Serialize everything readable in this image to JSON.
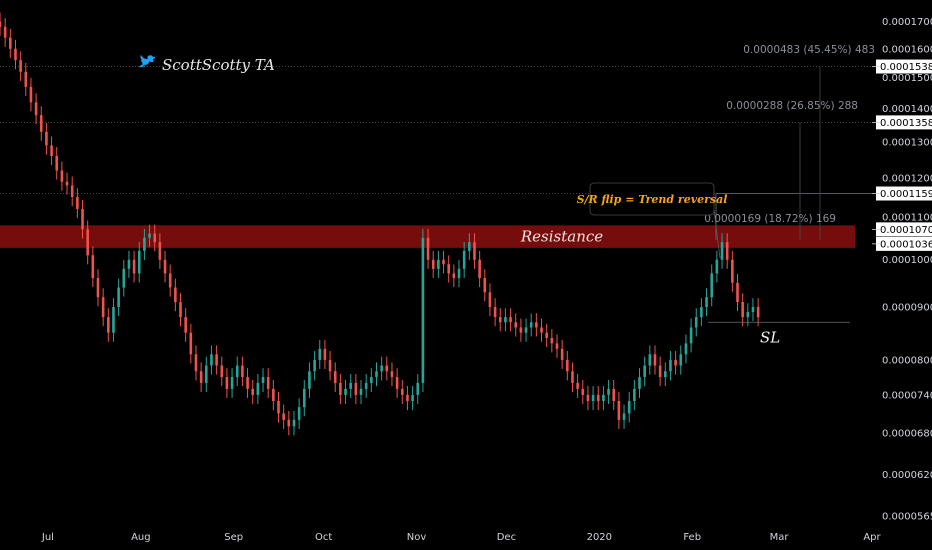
{
  "watermark": {
    "text": "ScottScotty TA",
    "icon": "twitter-bird-icon",
    "icon_color": "#1da1f2"
  },
  "annotations": {
    "resistance": "Resistance",
    "sl": "SL",
    "callout": "S/R flip = Trend reversal"
  },
  "measurements": [
    {
      "text": "0.0000483 (45.45%) 483",
      "price": 0.00016
    },
    {
      "text": "0.0000288 (26.85%) 288",
      "price": 0.0001412
    },
    {
      "text": "0.0000169 (18.72%) 169",
      "price": 0.0001097
    }
  ],
  "colors": {
    "background": "#000000",
    "up": "#26a69a",
    "down": "#ef5350",
    "resistance_zone": "#8b0f0f",
    "callout": "#f7a21b"
  },
  "chart_data": {
    "type": "candlestick",
    "y_axis": {
      "ticks": [
        "0.0001700",
        "0.0001600",
        "0.0001500",
        "0.0001400",
        "0.0001300",
        "0.0001200",
        "0.0001100",
        "0.0001000",
        "0.0000900",
        "0.0000800",
        "0.0000740",
        "0.0000680",
        "0.0000620",
        "0.0000565"
      ],
      "scale": "log",
      "range": [
        5.6e-05,
        0.000176
      ]
    },
    "x_axis": {
      "ticks": [
        "Jul",
        "Aug",
        "Sep",
        "Oct",
        "Nov",
        "Dec",
        "2020",
        "Feb",
        "Mar",
        "Apr"
      ],
      "range_months": [
        "2019-06-15",
        "2020-04-01"
      ]
    },
    "price_badges": [
      {
        "label": "0.0001538",
        "value": 0.0001538
      },
      {
        "label": "0.0001358",
        "value": 0.0001358
      },
      {
        "label": "0.0001159",
        "value": 0.0001159
      },
      {
        "label": "0.0001070",
        "value": 0.000107
      },
      {
        "label": "0.0001036",
        "value": 0.0001036
      }
    ],
    "resistance_zone": [
      0.0001036,
      0.000107
    ],
    "stop_loss": 8.7e-05,
    "grid": false,
    "closes": [
      0.000168,
      0.000164,
      0.00016,
      0.000156,
      0.000152,
      0.000147,
      0.000142,
      0.000138,
      0.000133,
      0.000129,
      0.000126,
      0.000122,
      0.000119,
      0.000118,
      0.000115,
      0.000112,
      0.000107,
      0.000101,
      9.6e-05,
      9.2e-05,
      8.8e-05,
      8.5e-05,
      9e-05,
      9.4e-05,
      9.8e-05,
      0.0001,
      9.7e-05,
      0.000102,
      0.000105,
      0.000106,
      0.000104,
      0.0001,
      9.7e-05,
      9.4e-05,
      9.1e-05,
      8.8e-05,
      8.5e-05,
      8.1e-05,
      7.8e-05,
      7.6e-05,
      7.9e-05,
      8.1e-05,
      7.9e-05,
      7.7e-05,
      7.5e-05,
      7.7e-05,
      7.9e-05,
      7.7e-05,
      7.5e-05,
      7.4e-05,
      7.6e-05,
      7.7e-05,
      7.5e-05,
      7.3e-05,
      7.1e-05,
      7e-05,
      6.9e-05,
      7e-05,
      7.2e-05,
      7.5e-05,
      7.8e-05,
      8e-05,
      8.2e-05,
      8e-05,
      7.8e-05,
      7.6e-05,
      7.4e-05,
      7.5e-05,
      7.6e-05,
      7.4e-05,
      7.5e-05,
      7.6e-05,
      7.7e-05,
      7.8e-05,
      7.9e-05,
      7.8e-05,
      7.7e-05,
      7.5e-05,
      7.4e-05,
      7.3e-05,
      7.4e-05,
      7.6e-05,
      0.000105,
      0.0001,
      9.8e-05,
      0.0001,
      9.9e-05,
      9.7e-05,
      9.6e-05,
      9.8e-05,
      0.000102,
      0.000104,
      0.0001,
      9.6e-05,
      9.3e-05,
      9e-05,
      8.8e-05,
      8.7e-05,
      8.8e-05,
      8.7e-05,
      8.6e-05,
      8.5e-05,
      8.6e-05,
      8.7e-05,
      8.6e-05,
      8.5e-05,
      8.4e-05,
      8.3e-05,
      8.2e-05,
      8e-05,
      7.8e-05,
      7.6e-05,
      7.5e-05,
      7.4e-05,
      7.3e-05,
      7.4e-05,
      7.3e-05,
      7.4e-05,
      7.5e-05,
      7.3e-05,
      7e-05,
      7.1e-05,
      7.3e-05,
      7.5e-05,
      7.7e-05,
      7.9e-05,
      8.1e-05,
      7.9e-05,
      7.7e-05,
      7.8e-05,
      8e-05,
      7.9e-05,
      8.1e-05,
      8.3e-05,
      8.6e-05,
      8.8e-05,
      9e-05,
      9.2e-05,
      9.7e-05,
      0.0001,
      0.000104,
      0.0001,
      9.5e-05,
      9.1e-05,
      8.8e-05,
      8.9e-05,
      9e-05,
      8.8e-05
    ],
    "start_open": 0.00017,
    "last_date": "2020-02-23"
  }
}
